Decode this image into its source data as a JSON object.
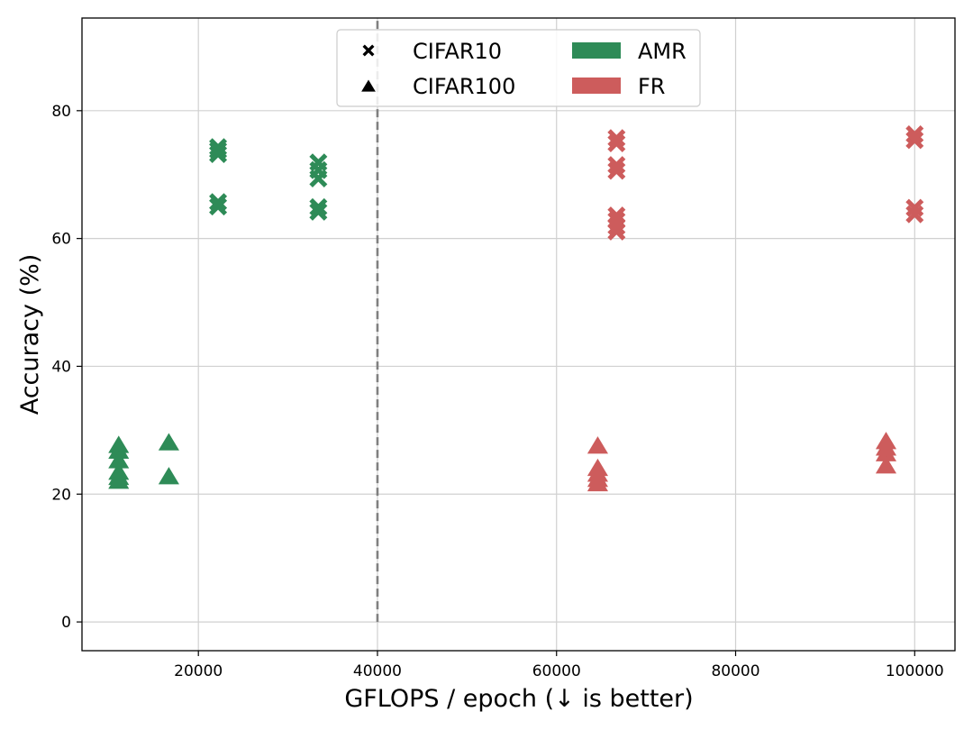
{
  "chart_data": {
    "type": "scatter",
    "title": "",
    "xlabel": "GFLOPS / epoch (↓ is better)",
    "ylabel": "Accuracy (%)",
    "xlim": [
      7000,
      104500
    ],
    "ylim": [
      -4.5,
      94.5
    ],
    "x_ticks": [
      20000,
      40000,
      60000,
      80000,
      100000
    ],
    "x_tick_labels": [
      "20000",
      "40000",
      "60000",
      "80000",
      "100000"
    ],
    "y_ticks": [
      0,
      20,
      40,
      60,
      80
    ],
    "y_tick_labels": [
      "0",
      "20",
      "40",
      "60",
      "80"
    ],
    "grid": true,
    "reference_line": {
      "x": 40000,
      "style": "dashed",
      "color": "#808080"
    },
    "colors": {
      "AMR": "#2e8b57",
      "FR": "#cd5c5c"
    },
    "legend": {
      "placement": "top-center",
      "markers": [
        {
          "label": "CIFAR10",
          "marker": "x"
        },
        {
          "label": "CIFAR100",
          "marker": "triangle"
        }
      ],
      "methods": [
        {
          "label": "AMR",
          "color": "#2e8b57"
        },
        {
          "label": "FR",
          "color": "#cd5c5c"
        }
      ]
    },
    "series": [
      {
        "method": "AMR",
        "dataset": "CIFAR10",
        "marker": "x",
        "color": "#2e8b57",
        "points": [
          [
            22200,
            74.3
          ],
          [
            22200,
            73.8
          ],
          [
            22200,
            73.2
          ],
          [
            22200,
            65.7
          ],
          [
            22200,
            65.0
          ],
          [
            33400,
            71.9
          ],
          [
            33400,
            70.7
          ],
          [
            33400,
            69.4
          ],
          [
            33400,
            64.9
          ],
          [
            33400,
            64.2
          ]
        ]
      },
      {
        "method": "AMR",
        "dataset": "CIFAR100",
        "marker": "triangle",
        "color": "#2e8b57",
        "points": [
          [
            11100,
            27.6
          ],
          [
            11100,
            26.7
          ],
          [
            11100,
            25.2
          ],
          [
            11100,
            23.4
          ],
          [
            11100,
            22.6
          ],
          [
            11100,
            22.0
          ],
          [
            16700,
            28.0
          ],
          [
            16700,
            22.7
          ]
        ]
      },
      {
        "method": "FR",
        "dataset": "CIFAR10",
        "marker": "x",
        "color": "#cd5c5c",
        "points": [
          [
            66700,
            75.7
          ],
          [
            66700,
            74.9
          ],
          [
            66700,
            71.5
          ],
          [
            66700,
            70.6
          ],
          [
            66700,
            63.6
          ],
          [
            66700,
            62.8
          ],
          [
            66700,
            61.9
          ],
          [
            66700,
            61.1
          ]
        ]
      },
      {
        "method": "FR",
        "dataset": "CIFAR100",
        "marker": "triangle",
        "color": "#cd5c5c",
        "points": [
          [
            64600,
            27.5
          ],
          [
            64600,
            24.0
          ],
          [
            64600,
            23.1
          ],
          [
            64600,
            22.3
          ],
          [
            64600,
            21.6
          ],
          [
            96800,
            28.2
          ],
          [
            96800,
            27.2
          ],
          [
            96800,
            26.3
          ],
          [
            96800,
            24.4
          ]
        ]
      },
      {
        "method": "FR",
        "dataset": "CIFAR10",
        "marker": "x",
        "color": "#cd5c5c",
        "points": [
          [
            100000,
            76.3
          ],
          [
            100000,
            75.4
          ],
          [
            100000,
            64.8
          ],
          [
            100000,
            63.8
          ]
        ]
      }
    ]
  }
}
